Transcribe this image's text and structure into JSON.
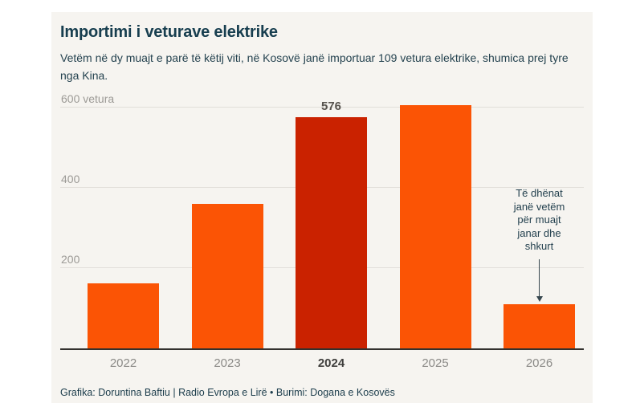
{
  "header": {
    "title": "Importimi i veturave elektrike",
    "subtitle": "Vetëm në dy muajt e parë të këtij viti, në Kosovë janë importuar 109 vetura elektrike, shumica prej tyre nga Kina."
  },
  "chart_data": {
    "type": "bar",
    "title": "Importimi i veturave elektrike",
    "xlabel": "",
    "ylabel": "vetura",
    "categories": [
      "2022",
      "2023",
      "2024",
      "2025",
      "2026"
    ],
    "values": [
      162,
      360,
      576,
      605,
      109
    ],
    "highlight_index": 2,
    "highlight_value_label": "576",
    "y_ticks": [
      200,
      400,
      600
    ],
    "y_tick_labels": [
      "200",
      "400",
      "600 vetura"
    ],
    "ylim": [
      0,
      620
    ],
    "grid": "horizontal",
    "legend": "none",
    "bar_color": "#fb5405",
    "highlight_color": "#ca2200",
    "annotation": {
      "text": "Të dhënat janë vetëm për muajt janar dhe shkurt",
      "target_category": "2026"
    }
  },
  "footer": {
    "credit": "Grafika: Doruntina Baftiu | Radio Evropa e Lirë • Burimi: Dogana e Kosovës"
  },
  "colors": {
    "card_background": "#f6f4f0",
    "bar_orange": "#fb5405",
    "bar_highlight_red": "#ca2200",
    "text_navy": "#173e4f",
    "axis_gray": "#9c9a96"
  }
}
